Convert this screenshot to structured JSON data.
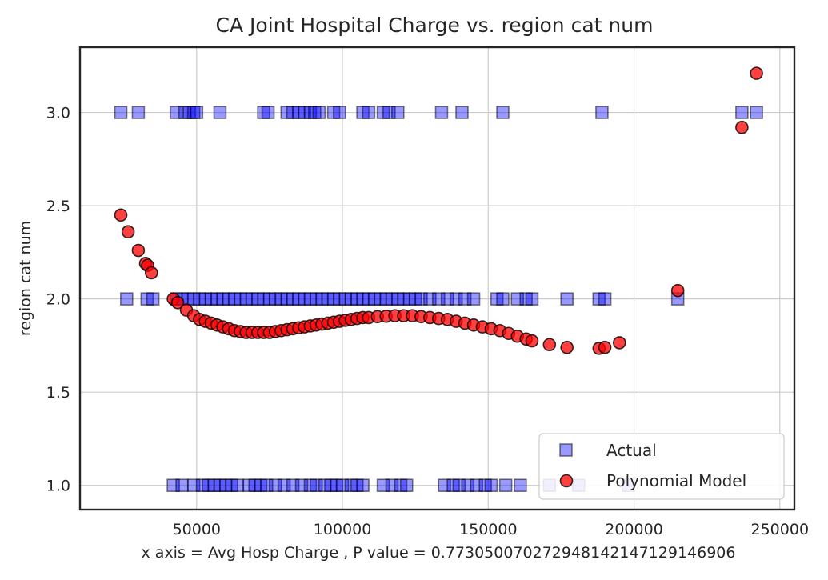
{
  "chart_data": {
    "type": "scatter",
    "title": "CA Joint Hospital Charge vs. region cat num",
    "xlabel": "x axis = Avg Hosp Charge , P value = 0.7730500702729481421471291469​06",
    "ylabel": "region cat num",
    "xlim": [
      10000,
      255000
    ],
    "ylim": [
      0.87,
      3.35
    ],
    "x_ticks": [
      50000,
      100000,
      150000,
      200000,
      250000
    ],
    "x_tick_labels": [
      "50000",
      "100000",
      "150000",
      "200000",
      "250000"
    ],
    "y_ticks": [
      1.0,
      1.5,
      2.0,
      2.5,
      3.0
    ],
    "y_tick_labels": [
      "1.0",
      "1.5",
      "2.0",
      "2.5",
      "3.0"
    ],
    "grid": true,
    "legend_position": "lower-right",
    "series": [
      {
        "name": "Actual",
        "marker": "square",
        "color": "#0000ff",
        "points": [
          [
            24000,
            3.0
          ],
          [
            30000,
            3.0
          ],
          [
            43000,
            3.0
          ],
          [
            46000,
            3.0
          ],
          [
            47500,
            3.0
          ],
          [
            49000,
            3.0
          ],
          [
            50000,
            3.0
          ],
          [
            58000,
            3.0
          ],
          [
            73000,
            3.0
          ],
          [
            74500,
            3.0
          ],
          [
            81000,
            3.0
          ],
          [
            83000,
            3.0
          ],
          [
            85000,
            3.0
          ],
          [
            87000,
            3.0
          ],
          [
            89000,
            3.0
          ],
          [
            90500,
            3.0
          ],
          [
            92000,
            3.0
          ],
          [
            97000,
            3.0
          ],
          [
            99000,
            3.0
          ],
          [
            107000,
            3.0
          ],
          [
            109000,
            3.0
          ],
          [
            114000,
            3.0
          ],
          [
            116000,
            3.0
          ],
          [
            119000,
            3.0
          ],
          [
            134000,
            3.0
          ],
          [
            141000,
            3.0
          ],
          [
            155000,
            3.0
          ],
          [
            189000,
            3.0
          ],
          [
            237000,
            3.0
          ],
          [
            242000,
            3.0
          ],
          [
            26000,
            2.0
          ],
          [
            33000,
            2.0
          ],
          [
            35000,
            2.0
          ],
          [
            43000,
            2.0
          ],
          [
            45000,
            2.0
          ],
          [
            47000,
            2.0
          ],
          [
            49000,
            2.0
          ],
          [
            51000,
            2.0
          ],
          [
            53000,
            2.0
          ],
          [
            55000,
            2.0
          ],
          [
            57000,
            2.0
          ],
          [
            59000,
            2.0
          ],
          [
            61000,
            2.0
          ],
          [
            63000,
            2.0
          ],
          [
            65000,
            2.0
          ],
          [
            67000,
            2.0
          ],
          [
            69000,
            2.0
          ],
          [
            71000,
            2.0
          ],
          [
            73000,
            2.0
          ],
          [
            75000,
            2.0
          ],
          [
            77000,
            2.0
          ],
          [
            79000,
            2.0
          ],
          [
            81000,
            2.0
          ],
          [
            83000,
            2.0
          ],
          [
            85000,
            2.0
          ],
          [
            87000,
            2.0
          ],
          [
            89000,
            2.0
          ],
          [
            91000,
            2.0
          ],
          [
            93000,
            2.0
          ],
          [
            95000,
            2.0
          ],
          [
            97000,
            2.0
          ],
          [
            99000,
            2.0
          ],
          [
            101000,
            2.0
          ],
          [
            103000,
            2.0
          ],
          [
            105000,
            2.0
          ],
          [
            107000,
            2.0
          ],
          [
            109000,
            2.0
          ],
          [
            111000,
            2.0
          ],
          [
            113000,
            2.0
          ],
          [
            115000,
            2.0
          ],
          [
            117000,
            2.0
          ],
          [
            119000,
            2.0
          ],
          [
            121000,
            2.0
          ],
          [
            123000,
            2.0
          ],
          [
            125000,
            2.0
          ],
          [
            127000,
            2.0
          ],
          [
            130000,
            2.0
          ],
          [
            133000,
            2.0
          ],
          [
            136000,
            2.0
          ],
          [
            139000,
            2.0
          ],
          [
            142000,
            2.0
          ],
          [
            145000,
            2.0
          ],
          [
            153000,
            2.0
          ],
          [
            155000,
            2.0
          ],
          [
            160000,
            2.0
          ],
          [
            163000,
            2.0
          ],
          [
            165000,
            2.0
          ],
          [
            177000,
            2.0
          ],
          [
            188000,
            2.0
          ],
          [
            190000,
            2.0
          ],
          [
            215000,
            2.0
          ],
          [
            42000,
            1.0
          ],
          [
            45000,
            1.0
          ],
          [
            49000,
            1.0
          ],
          [
            52000,
            1.0
          ],
          [
            54000,
            1.0
          ],
          [
            56000,
            1.0
          ],
          [
            58000,
            1.0
          ],
          [
            60000,
            1.0
          ],
          [
            62000,
            1.0
          ],
          [
            64000,
            1.0
          ],
          [
            68000,
            1.0
          ],
          [
            70000,
            1.0
          ],
          [
            72000,
            1.0
          ],
          [
            74000,
            1.0
          ],
          [
            77000,
            1.0
          ],
          [
            80000,
            1.0
          ],
          [
            83000,
            1.0
          ],
          [
            86000,
            1.0
          ],
          [
            89000,
            1.0
          ],
          [
            91000,
            1.0
          ],
          [
            94000,
            1.0
          ],
          [
            96000,
            1.0
          ],
          [
            98000,
            1.0
          ],
          [
            100000,
            1.0
          ],
          [
            103000,
            1.0
          ],
          [
            105000,
            1.0
          ],
          [
            107000,
            1.0
          ],
          [
            114000,
            1.0
          ],
          [
            117000,
            1.0
          ],
          [
            120000,
            1.0
          ],
          [
            122000,
            1.0
          ],
          [
            135000,
            1.0
          ],
          [
            138000,
            1.0
          ],
          [
            140000,
            1.0
          ],
          [
            143000,
            1.0
          ],
          [
            146000,
            1.0
          ],
          [
            149000,
            1.0
          ],
          [
            151000,
            1.0
          ],
          [
            156000,
            1.0
          ],
          [
            161000,
            1.0
          ],
          [
            171000,
            1.0
          ],
          [
            181000,
            1.0
          ],
          [
            198000,
            1.0
          ]
        ]
      },
      {
        "name": "Polynomial Model",
        "marker": "circle",
        "color": "#ff0000",
        "points": [
          [
            24000,
            2.45
          ],
          [
            26500,
            2.36
          ],
          [
            30000,
            2.26
          ],
          [
            32500,
            2.19
          ],
          [
            33200,
            2.18
          ],
          [
            34500,
            2.14
          ],
          [
            42000,
            2.0
          ],
          [
            43500,
            1.98
          ],
          [
            46500,
            1.94
          ],
          [
            49000,
            1.91
          ],
          [
            51000,
            1.89
          ],
          [
            53000,
            1.88
          ],
          [
            55000,
            1.87
          ],
          [
            57000,
            1.86
          ],
          [
            59000,
            1.85
          ],
          [
            61000,
            1.84
          ],
          [
            63000,
            1.83
          ],
          [
            65000,
            1.825
          ],
          [
            67000,
            1.82
          ],
          [
            69000,
            1.82
          ],
          [
            71000,
            1.82
          ],
          [
            73000,
            1.82
          ],
          [
            75000,
            1.82
          ],
          [
            77000,
            1.825
          ],
          [
            79000,
            1.83
          ],
          [
            81000,
            1.835
          ],
          [
            83000,
            1.84
          ],
          [
            85000,
            1.845
          ],
          [
            87000,
            1.85
          ],
          [
            89000,
            1.855
          ],
          [
            91000,
            1.86
          ],
          [
            93000,
            1.865
          ],
          [
            95000,
            1.87
          ],
          [
            97000,
            1.875
          ],
          [
            99000,
            1.88
          ],
          [
            101000,
            1.885
          ],
          [
            103000,
            1.89
          ],
          [
            105000,
            1.895
          ],
          [
            107000,
            1.9
          ],
          [
            109000,
            1.9
          ],
          [
            112000,
            1.905
          ],
          [
            115000,
            1.907
          ],
          [
            118000,
            1.91
          ],
          [
            121000,
            1.91
          ],
          [
            124000,
            1.91
          ],
          [
            127000,
            1.905
          ],
          [
            130000,
            1.9
          ],
          [
            133000,
            1.895
          ],
          [
            136000,
            1.89
          ],
          [
            139000,
            1.88
          ],
          [
            142000,
            1.87
          ],
          [
            145000,
            1.86
          ],
          [
            148000,
            1.85
          ],
          [
            151000,
            1.84
          ],
          [
            154000,
            1.83
          ],
          [
            157000,
            1.815
          ],
          [
            160000,
            1.8
          ],
          [
            163000,
            1.785
          ],
          [
            165000,
            1.775
          ],
          [
            171000,
            1.755
          ],
          [
            177000,
            1.74
          ],
          [
            188000,
            1.735
          ],
          [
            190000,
            1.74
          ],
          [
            195000,
            1.765
          ],
          [
            215000,
            2.045
          ],
          [
            237000,
            2.92
          ],
          [
            242000,
            3.21
          ]
        ]
      }
    ],
    "legend_entries": [
      "Actual",
      "Polynomial Model"
    ]
  }
}
